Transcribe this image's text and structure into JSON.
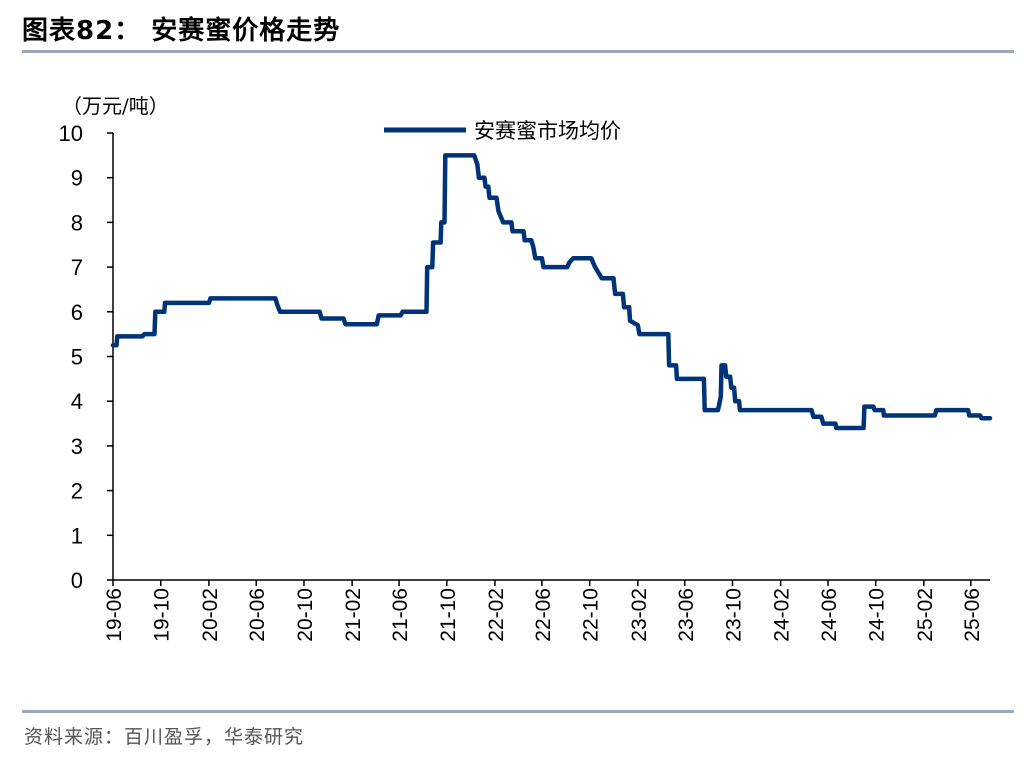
{
  "header": {
    "title": "图表82：   安赛蜜价格走势"
  },
  "footer": {
    "source": "资料来源：百川盈孚，华泰研究"
  },
  "chart_data": {
    "type": "line",
    "unit_label": "（万元/吨）",
    "ylim": [
      0,
      10
    ],
    "yticks": [
      "0",
      "1",
      "2",
      "3",
      "4",
      "5",
      "6",
      "7",
      "8",
      "9",
      "10"
    ],
    "xticks": [
      "19-06",
      "19-10",
      "20-02",
      "20-06",
      "20-10",
      "21-02",
      "21-06",
      "21-10",
      "22-02",
      "22-06",
      "22-10",
      "23-02",
      "23-06",
      "23-10",
      "24-02",
      "24-06",
      "24-10",
      "25-02",
      "25-06"
    ],
    "grid": false,
    "legend_position": "top-center",
    "series": [
      {
        "name": "安赛蜜市场均价",
        "color": "#003378",
        "points": [
          [
            "2019-06-01",
            5.25
          ],
          [
            "2019-06-10",
            5.25
          ],
          [
            "2019-06-12",
            5.45
          ],
          [
            "2019-07-10",
            5.45
          ],
          [
            "2019-08-15",
            5.45
          ],
          [
            "2019-08-20",
            5.5
          ],
          [
            "2019-09-15",
            5.5
          ],
          [
            "2019-09-17",
            6.0
          ],
          [
            "2019-10-10",
            6.0
          ],
          [
            "2019-10-12",
            6.2
          ],
          [
            "2020-02-01",
            6.2
          ],
          [
            "2020-02-05",
            6.3
          ],
          [
            "2020-07-20",
            6.3
          ],
          [
            "2020-07-25",
            6.15
          ],
          [
            "2020-08-01",
            6.0
          ],
          [
            "2020-11-10",
            6.0
          ],
          [
            "2020-11-15",
            5.85
          ],
          [
            "2021-01-10",
            5.85
          ],
          [
            "2021-01-15",
            5.72
          ],
          [
            "2021-04-05",
            5.72
          ],
          [
            "2021-04-10",
            5.92
          ],
          [
            "2021-06-05",
            5.92
          ],
          [
            "2021-06-10",
            6.0
          ],
          [
            "2021-08-10",
            6.0
          ],
          [
            "2021-08-12",
            7.0
          ],
          [
            "2021-08-25",
            7.0
          ],
          [
            "2021-08-27",
            7.55
          ],
          [
            "2021-09-15",
            7.55
          ],
          [
            "2021-09-17",
            8.0
          ],
          [
            "2021-09-25",
            8.0
          ],
          [
            "2021-09-27",
            9.5
          ],
          [
            "2021-12-10",
            9.5
          ],
          [
            "2021-12-18",
            9.3
          ],
          [
            "2021-12-22",
            9.0
          ],
          [
            "2022-01-05",
            9.0
          ],
          [
            "2022-01-08",
            8.8
          ],
          [
            "2022-01-15",
            8.8
          ],
          [
            "2022-01-18",
            8.55
          ],
          [
            "2022-02-05",
            8.55
          ],
          [
            "2022-02-10",
            8.25
          ],
          [
            "2022-02-22",
            8.0
          ],
          [
            "2022-03-15",
            8.0
          ],
          [
            "2022-03-18",
            7.8
          ],
          [
            "2022-04-15",
            7.8
          ],
          [
            "2022-04-18",
            7.6
          ],
          [
            "2022-05-05",
            7.6
          ],
          [
            "2022-05-10",
            7.45
          ],
          [
            "2022-05-15",
            7.2
          ],
          [
            "2022-06-01",
            7.2
          ],
          [
            "2022-06-05",
            7.0
          ],
          [
            "2022-08-05",
            7.0
          ],
          [
            "2022-08-10",
            7.1
          ],
          [
            "2022-08-20",
            7.2
          ],
          [
            "2022-10-05",
            7.2
          ],
          [
            "2022-10-15",
            7.0
          ],
          [
            "2022-11-01",
            6.75
          ],
          [
            "2022-12-01",
            6.75
          ],
          [
            "2022-12-05",
            6.4
          ],
          [
            "2022-12-25",
            6.4
          ],
          [
            "2022-12-28",
            6.1
          ],
          [
            "2023-01-10",
            6.1
          ],
          [
            "2023-01-12",
            5.8
          ],
          [
            "2023-02-01",
            5.7
          ],
          [
            "2023-02-05",
            5.5
          ],
          [
            "2023-04-20",
            5.5
          ],
          [
            "2023-04-22",
            4.8
          ],
          [
            "2023-05-10",
            4.8
          ],
          [
            "2023-05-12",
            4.5
          ],
          [
            "2023-07-20",
            4.5
          ],
          [
            "2023-07-22",
            3.8
          ],
          [
            "2023-08-25",
            3.8
          ],
          [
            "2023-09-01",
            4.1
          ],
          [
            "2023-09-03",
            4.8
          ],
          [
            "2023-09-12",
            4.8
          ],
          [
            "2023-09-15",
            4.55
          ],
          [
            "2023-09-25",
            4.55
          ],
          [
            "2023-09-28",
            4.3
          ],
          [
            "2023-10-05",
            4.3
          ],
          [
            "2023-10-08",
            4.0
          ],
          [
            "2023-10-18",
            4.0
          ],
          [
            "2023-10-20",
            3.8
          ],
          [
            "2024-04-20",
            3.8
          ],
          [
            "2024-04-25",
            3.65
          ],
          [
            "2024-05-15",
            3.65
          ],
          [
            "2024-05-20",
            3.5
          ],
          [
            "2024-06-20",
            3.5
          ],
          [
            "2024-06-22",
            3.4
          ],
          [
            "2024-08-31",
            3.4
          ],
          [
            "2024-09-02",
            3.88
          ],
          [
            "2024-09-25",
            3.88
          ],
          [
            "2024-09-28",
            3.8
          ],
          [
            "2024-10-20",
            3.8
          ],
          [
            "2024-10-22",
            3.68
          ],
          [
            "2025-03-01",
            3.68
          ],
          [
            "2025-03-05",
            3.8
          ],
          [
            "2025-05-25",
            3.8
          ],
          [
            "2025-05-28",
            3.68
          ],
          [
            "2025-06-25",
            3.68
          ],
          [
            "2025-06-28",
            3.62
          ],
          [
            "2025-07-20",
            3.62
          ]
        ]
      }
    ]
  }
}
